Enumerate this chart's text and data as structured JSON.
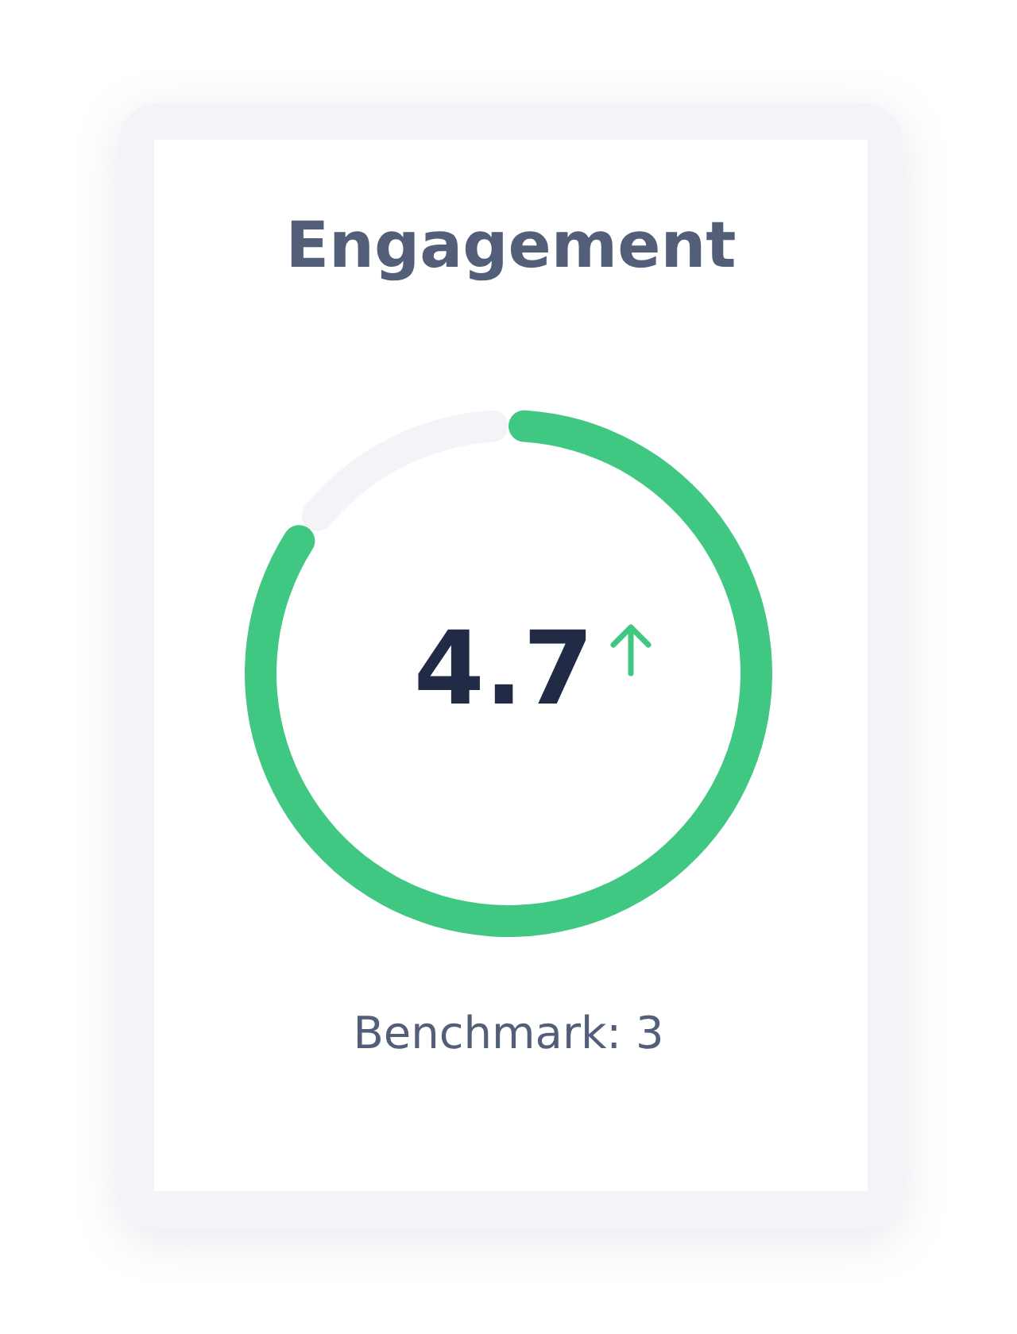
{
  "chart_data": {
    "type": "donut",
    "title": "Engagement",
    "categories": [
      null,
      null
    ],
    "values": [
      85,
      15
    ],
    "colors": [
      "#40c882",
      "#f3f4f8"
    ],
    "annotations": [
      "4.7",
      "Benchmark: 3"
    ]
  }
}
